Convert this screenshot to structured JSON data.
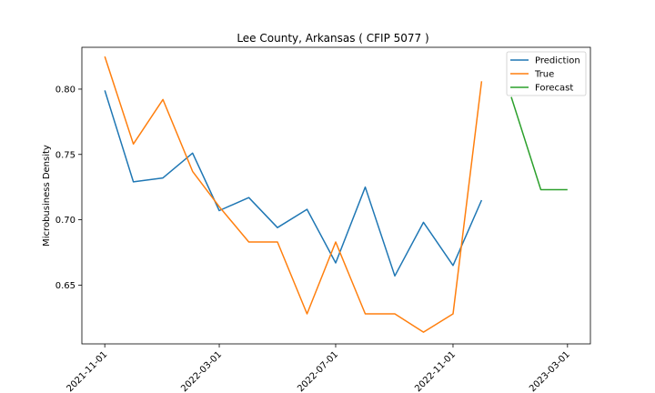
{
  "chart_data": {
    "type": "line",
    "title": "Lee County, Arkansas ( CFIP 5077 )",
    "xlabel": "",
    "ylabel": "Microbusiness Density",
    "x_ticks": [
      "2021-11-01",
      "2022-03-01",
      "2022-07-01",
      "2022-11-01",
      "2023-03-01"
    ],
    "y_ticks": [
      "0.65",
      "0.70",
      "0.75",
      "0.80"
    ],
    "ylim": [
      0.605,
      0.832
    ],
    "xlim": [
      "2021-10-08",
      "2023-03-25"
    ],
    "grid": false,
    "legend_position": "top-right",
    "series": [
      {
        "name": "Prediction",
        "color": "#1f77b4",
        "x": [
          "2021-11-01",
          "2021-12-01",
          "2022-01-01",
          "2022-02-01",
          "2022-03-01",
          "2022-04-01",
          "2022-05-01",
          "2022-06-01",
          "2022-07-01",
          "2022-08-01",
          "2022-09-01",
          "2022-10-01",
          "2022-11-01",
          "2022-12-01"
        ],
        "values": [
          0.799,
          0.729,
          0.732,
          0.751,
          0.707,
          0.717,
          0.694,
          0.708,
          0.667,
          0.725,
          0.657,
          0.698,
          0.665,
          0.715
        ]
      },
      {
        "name": "True",
        "color": "#ff7f0e",
        "x": [
          "2021-11-01",
          "2021-12-01",
          "2022-01-01",
          "2022-02-01",
          "2022-03-01",
          "2022-04-01",
          "2022-05-01",
          "2022-06-01",
          "2022-07-01",
          "2022-08-01",
          "2022-09-01",
          "2022-10-01",
          "2022-11-01",
          "2022-12-01"
        ],
        "values": [
          0.825,
          0.758,
          0.792,
          0.737,
          0.71,
          0.683,
          0.683,
          0.628,
          0.683,
          0.628,
          0.628,
          0.614,
          0.628,
          0.806
        ]
      },
      {
        "name": "Forecast",
        "color": "#2ca02c",
        "x": [
          "2023-01-01",
          "2023-02-01",
          "2023-03-01"
        ],
        "values": [
          0.794,
          0.723,
          0.723
        ]
      }
    ]
  }
}
